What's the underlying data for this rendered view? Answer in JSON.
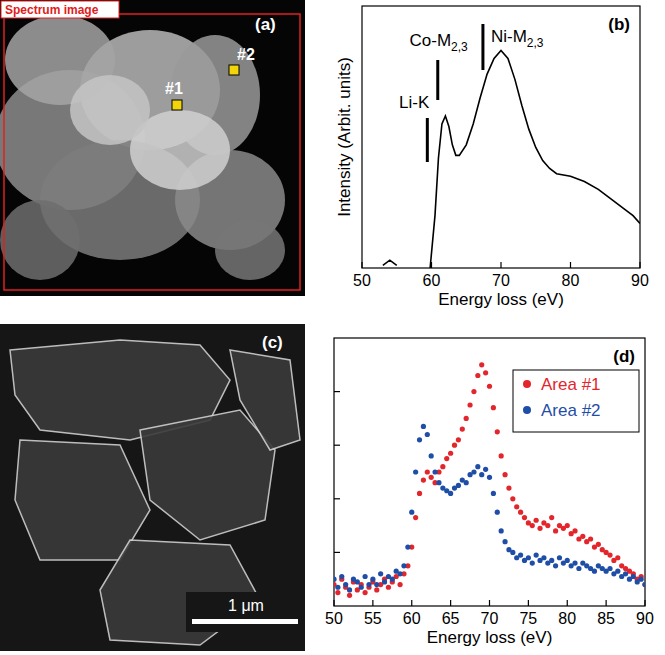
{
  "chart_data": [
    {
      "type": "line",
      "title": "(b)",
      "x_label": "Energy loss (eV)",
      "y_label": "Intensity (Arbit. units)",
      "x": [
        53,
        54,
        55,
        56,
        59.8,
        60.5,
        61,
        61.5,
        62,
        62.5,
        63,
        63.5,
        64,
        65,
        66,
        67,
        68,
        69,
        70,
        71,
        72,
        73,
        74,
        75,
        76,
        77,
        78,
        80,
        82,
        84,
        86,
        88,
        89,
        90
      ],
      "values": [
        0.01,
        0.03,
        0.01,
        null,
        0,
        0.2,
        0.42,
        0.55,
        0.58,
        0.54,
        0.47,
        0.43,
        0.43,
        0.47,
        0.55,
        0.65,
        0.74,
        0.8,
        0.83,
        0.8,
        0.72,
        0.62,
        0.53,
        0.46,
        0.41,
        0.38,
        0.36,
        0.35,
        0.33,
        0.3,
        0.26,
        0.22,
        0.2,
        0.17
      ],
      "color": "#000000",
      "xlim": [
        50,
        90
      ],
      "xticks": [
        50,
        60,
        70,
        80,
        90
      ],
      "ylim": [
        0,
        1
      ],
      "yticks": [],
      "tick_labels": "x",
      "annotations": [
        {
          "text": "Li-K",
          "x": 59.4
        },
        {
          "text": "Co-M",
          "sub": "2,3",
          "x": 60.9
        },
        {
          "text": "Ni-M",
          "sub": "2,3",
          "x": 67.4
        }
      ]
    },
    {
      "type": "scatter",
      "title": "(d)",
      "x_label": "Energy loss (eV)",
      "x": [
        50,
        50.5,
        51,
        51.5,
        52,
        52.5,
        53,
        53.5,
        54,
        54.5,
        55,
        55.5,
        56,
        56.5,
        57,
        57.5,
        58,
        58.5,
        59,
        59.5,
        60,
        60.5,
        61,
        61.5,
        62,
        62.5,
        63,
        63.5,
        64,
        64.5,
        65,
        65.5,
        66,
        66.5,
        67,
        67.5,
        68,
        68.5,
        69,
        69.5,
        70,
        70.5,
        71,
        71.5,
        72,
        72.5,
        73,
        73.5,
        74,
        74.5,
        75,
        75.5,
        76,
        76.5,
        77,
        77.5,
        78,
        78.5,
        79,
        79.5,
        80,
        80.5,
        81,
        81.5,
        82,
        82.5,
        83,
        83.5,
        84,
        84.5,
        85,
        85.5,
        86,
        86.5,
        87,
        87.5,
        88,
        88.5,
        89,
        89.5,
        90
      ],
      "series": [
        {
          "name": "Area #1",
          "color": "#e3262b",
          "values": [
            0.08,
            0.05,
            0.1,
            0.07,
            0.04,
            0.09,
            0.06,
            0.08,
            0.05,
            0.07,
            0.09,
            0.06,
            0.08,
            0.1,
            0.07,
            0.09,
            0.11,
            0.08,
            0.12,
            0.15,
            0.22,
            0.33,
            0.42,
            0.47,
            0.5,
            0.48,
            0.46,
            0.5,
            0.52,
            0.55,
            0.57,
            0.6,
            0.62,
            0.66,
            0.7,
            0.75,
            0.8,
            0.86,
            0.9,
            0.87,
            0.82,
            0.74,
            0.65,
            0.56,
            0.49,
            0.44,
            0.4,
            0.37,
            0.35,
            0.33,
            0.31,
            0.3,
            0.32,
            0.29,
            0.31,
            0.3,
            0.33,
            0.28,
            0.3,
            0.29,
            0.3,
            0.27,
            0.28,
            0.25,
            0.26,
            0.24,
            0.25,
            0.22,
            0.23,
            0.21,
            0.2,
            0.19,
            0.17,
            0.18,
            0.15,
            0.14,
            0.13,
            0.12,
            0.1,
            0.11,
            0.08
          ]
        },
        {
          "name": "Area #2",
          "color": "#1f4ea6",
          "values": [
            0.1,
            0.07,
            0.11,
            0.08,
            0.06,
            0.1,
            0.09,
            0.07,
            0.11,
            0.08,
            0.1,
            0.08,
            0.12,
            0.09,
            0.11,
            0.1,
            0.13,
            0.12,
            0.15,
            0.22,
            0.35,
            0.5,
            0.62,
            0.67,
            0.64,
            0.56,
            0.5,
            0.46,
            0.44,
            0.43,
            0.42,
            0.44,
            0.45,
            0.47,
            0.46,
            0.49,
            0.5,
            0.52,
            0.49,
            0.51,
            0.48,
            0.42,
            0.35,
            0.28,
            0.24,
            0.21,
            0.2,
            0.18,
            0.19,
            0.17,
            0.18,
            0.16,
            0.19,
            0.17,
            0.18,
            0.16,
            0.17,
            0.15,
            0.18,
            0.16,
            0.17,
            0.15,
            0.16,
            0.14,
            0.16,
            0.15,
            0.14,
            0.13,
            0.15,
            0.14,
            0.13,
            0.14,
            0.12,
            0.13,
            0.11,
            0.12,
            0.1,
            0.11,
            0.09,
            0.1,
            0.08
          ]
        }
      ],
      "xlim": [
        50,
        90
      ],
      "xticks": [
        50,
        55,
        60,
        65,
        70,
        75,
        80,
        85,
        90
      ],
      "ylim": [
        0,
        1
      ],
      "yticks": [
        0.2,
        0.4,
        0.6,
        0.8
      ],
      "tick_labels": "x",
      "legend": "upper right",
      "marker": "circle"
    }
  ],
  "images": [
    {
      "title": "(a)",
      "label": "Spectrum image",
      "markers": [
        "#1",
        "#2"
      ]
    },
    {
      "title": "(c)",
      "scale_bar": "1 μm"
    }
  ]
}
